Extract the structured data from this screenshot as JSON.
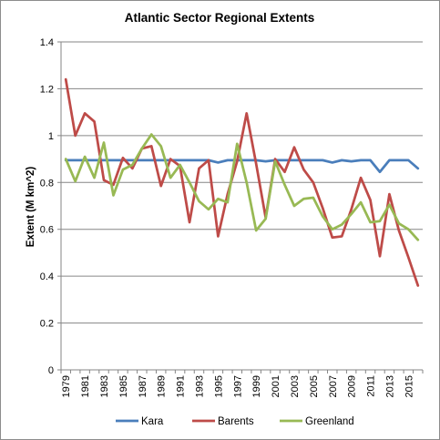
{
  "chart_data": {
    "type": "line",
    "title": "Atlantic Sector Regional Extents",
    "xlabel": "",
    "ylabel": "Extent (M km^2)",
    "ylim": [
      0,
      1.4
    ],
    "yticks": [
      "0",
      "0.2",
      "0.4",
      "0.6",
      "0.8",
      "1",
      "1.2",
      "1.4"
    ],
    "yticks_values": [
      0,
      0.2,
      0.4,
      0.6,
      0.8,
      1.0,
      1.2,
      1.4
    ],
    "x": [
      1979,
      1980,
      1981,
      1982,
      1983,
      1984,
      1985,
      1986,
      1987,
      1988,
      1989,
      1990,
      1991,
      1992,
      1993,
      1994,
      1995,
      1996,
      1997,
      1998,
      1999,
      2000,
      2001,
      2002,
      2003,
      2004,
      2005,
      2006,
      2007,
      2008,
      2009,
      2010,
      2011,
      2012,
      2013,
      2014,
      2015,
      2016
    ],
    "xtick_labels": [
      "1979",
      "1981",
      "1983",
      "1985",
      "1987",
      "1989",
      "1991",
      "1993",
      "1995",
      "1997",
      "1999",
      "2001",
      "2003",
      "2005",
      "2007",
      "2009",
      "2011",
      "2013",
      "2015"
    ],
    "grid": true,
    "legend_position": "bottom",
    "series": [
      {
        "name": "Kara",
        "color": "#4a7ebb",
        "values": [
          0.895,
          0.895,
          0.895,
          0.895,
          0.895,
          0.895,
          0.895,
          0.895,
          0.895,
          0.895,
          0.895,
          0.895,
          0.895,
          0.895,
          0.895,
          0.895,
          0.885,
          0.895,
          0.895,
          0.895,
          0.895,
          0.89,
          0.895,
          0.895,
          0.895,
          0.895,
          0.895,
          0.895,
          0.885,
          0.895,
          0.89,
          0.895,
          0.895,
          0.845,
          0.895,
          0.895,
          0.895,
          0.86
        ]
      },
      {
        "name": "Barents",
        "color": "#be4b48",
        "values": [
          1.24,
          1.0,
          1.095,
          1.06,
          0.81,
          0.79,
          0.905,
          0.86,
          0.945,
          0.955,
          0.785,
          0.9,
          0.87,
          0.63,
          0.86,
          0.895,
          0.57,
          0.75,
          0.89,
          1.095,
          0.88,
          0.65,
          0.9,
          0.845,
          0.95,
          0.855,
          0.8,
          0.69,
          0.565,
          0.57,
          0.685,
          0.82,
          0.725,
          0.485,
          0.75,
          0.595,
          0.48,
          0.36
        ]
      },
      {
        "name": "Greenland",
        "color": "#98b954",
        "values": [
          0.9,
          0.805,
          0.91,
          0.82,
          0.97,
          0.745,
          0.855,
          0.875,
          0.945,
          1.005,
          0.955,
          0.82,
          0.875,
          0.8,
          0.72,
          0.685,
          0.73,
          0.715,
          0.965,
          0.8,
          0.595,
          0.645,
          0.89,
          0.79,
          0.7,
          0.73,
          0.735,
          0.655,
          0.6,
          0.62,
          0.665,
          0.715,
          0.63,
          0.635,
          0.705,
          0.625,
          0.6,
          0.555
        ]
      }
    ]
  }
}
